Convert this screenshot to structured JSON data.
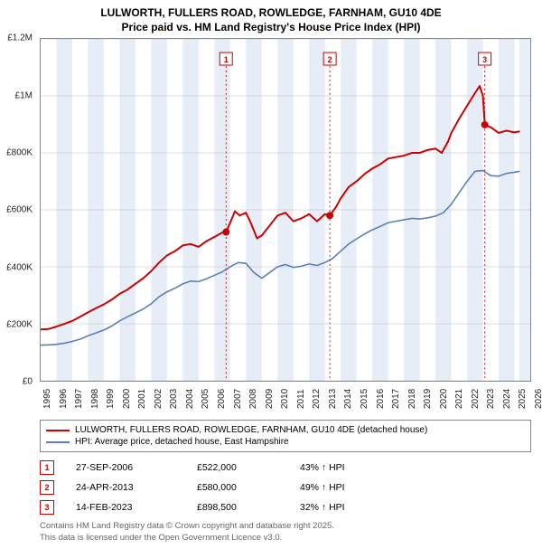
{
  "title_line1": "LULWORTH, FULLERS ROAD, ROWLEDGE, FARNHAM, GU10 4DE",
  "title_line2": "Price paid vs. HM Land Registry's House Price Index (HPI)",
  "chart": {
    "type": "line",
    "background_color": "#ffffff",
    "plot_border_color": "#888888",
    "band_color": "#e7edf7",
    "future_band_color": "#e7edf7",
    "grid_line_color": "#bbbbbb",
    "ylim": [
      0,
      1200000
    ],
    "ytick_step": 200000,
    "ytick_labels": [
      "£0",
      "£200K",
      "£400K",
      "£600K",
      "£800K",
      "£1M",
      "£1.2M"
    ],
    "xlim": [
      1995,
      2026
    ],
    "xticks": [
      1995,
      1996,
      1997,
      1998,
      1999,
      2000,
      2001,
      2002,
      2003,
      2004,
      2005,
      2006,
      2007,
      2008,
      2009,
      2010,
      2011,
      2012,
      2013,
      2014,
      2015,
      2016,
      2017,
      2018,
      2019,
      2020,
      2021,
      2022,
      2023,
      2024,
      2025,
      2026
    ],
    "alt_bands_start": 1995,
    "future_start": 2025.3,
    "series": [
      {
        "name": "property",
        "label": "LULWORTH, FULLERS ROAD, ROWLEDGE, FARNHAM, GU10 4DE (detached house)",
        "color": "#cc0000",
        "width": 2,
        "points": [
          [
            1995.0,
            180000
          ],
          [
            1995.5,
            182000
          ],
          [
            1996.0,
            190000
          ],
          [
            1996.5,
            200000
          ],
          [
            1997.0,
            210000
          ],
          [
            1997.5,
            225000
          ],
          [
            1998.0,
            240000
          ],
          [
            1998.5,
            255000
          ],
          [
            1999.0,
            268000
          ],
          [
            1999.5,
            285000
          ],
          [
            2000.0,
            305000
          ],
          [
            2000.5,
            320000
          ],
          [
            2001.0,
            340000
          ],
          [
            2001.5,
            360000
          ],
          [
            2002.0,
            385000
          ],
          [
            2002.5,
            415000
          ],
          [
            2003.0,
            440000
          ],
          [
            2003.5,
            455000
          ],
          [
            2004.0,
            475000
          ],
          [
            2004.5,
            480000
          ],
          [
            2005.0,
            470000
          ],
          [
            2005.5,
            490000
          ],
          [
            2006.0,
            505000
          ],
          [
            2006.5,
            520000
          ],
          [
            2006.74,
            522000
          ],
          [
            2007.0,
            555000
          ],
          [
            2007.3,
            595000
          ],
          [
            2007.6,
            580000
          ],
          [
            2008.0,
            590000
          ],
          [
            2008.3,
            555000
          ],
          [
            2008.7,
            500000
          ],
          [
            2009.0,
            510000
          ],
          [
            2009.5,
            545000
          ],
          [
            2010.0,
            580000
          ],
          [
            2010.5,
            590000
          ],
          [
            2011.0,
            560000
          ],
          [
            2011.5,
            570000
          ],
          [
            2012.0,
            585000
          ],
          [
            2012.5,
            560000
          ],
          [
            2013.0,
            585000
          ],
          [
            2013.31,
            580000
          ],
          [
            2013.7,
            610000
          ],
          [
            2014.0,
            640000
          ],
          [
            2014.5,
            680000
          ],
          [
            2015.0,
            700000
          ],
          [
            2015.5,
            725000
          ],
          [
            2016.0,
            745000
          ],
          [
            2016.5,
            760000
          ],
          [
            2017.0,
            780000
          ],
          [
            2017.5,
            785000
          ],
          [
            2018.0,
            790000
          ],
          [
            2018.5,
            800000
          ],
          [
            2019.0,
            800000
          ],
          [
            2019.5,
            810000
          ],
          [
            2020.0,
            815000
          ],
          [
            2020.4,
            800000
          ],
          [
            2020.8,
            840000
          ],
          [
            2021.0,
            870000
          ],
          [
            2021.5,
            920000
          ],
          [
            2022.0,
            965000
          ],
          [
            2022.5,
            1010000
          ],
          [
            2022.8,
            1035000
          ],
          [
            2023.0,
            1000000
          ],
          [
            2023.12,
            898500
          ],
          [
            2023.5,
            890000
          ],
          [
            2024.0,
            870000
          ],
          [
            2024.5,
            878000
          ],
          [
            2025.0,
            872000
          ],
          [
            2025.3,
            875000
          ]
        ]
      },
      {
        "name": "hpi",
        "label": "HPI: Average price, detached house, East Hampshire",
        "color": "#5b7fb5",
        "width": 1.6,
        "points": [
          [
            1995.0,
            125000
          ],
          [
            1995.5,
            126000
          ],
          [
            1996.0,
            128000
          ],
          [
            1996.5,
            132000
          ],
          [
            1997.0,
            138000
          ],
          [
            1997.5,
            146000
          ],
          [
            1998.0,
            158000
          ],
          [
            1998.5,
            168000
          ],
          [
            1999.0,
            178000
          ],
          [
            1999.5,
            192000
          ],
          [
            2000.0,
            210000
          ],
          [
            2000.5,
            225000
          ],
          [
            2001.0,
            238000
          ],
          [
            2001.5,
            252000
          ],
          [
            2002.0,
            270000
          ],
          [
            2002.5,
            295000
          ],
          [
            2003.0,
            312000
          ],
          [
            2003.5,
            325000
          ],
          [
            2004.0,
            340000
          ],
          [
            2004.5,
            350000
          ],
          [
            2005.0,
            348000
          ],
          [
            2005.5,
            358000
          ],
          [
            2006.0,
            370000
          ],
          [
            2006.5,
            382000
          ],
          [
            2007.0,
            400000
          ],
          [
            2007.5,
            415000
          ],
          [
            2008.0,
            412000
          ],
          [
            2008.5,
            380000
          ],
          [
            2009.0,
            360000
          ],
          [
            2009.5,
            380000
          ],
          [
            2010.0,
            400000
          ],
          [
            2010.5,
            408000
          ],
          [
            2011.0,
            398000
          ],
          [
            2011.5,
            402000
          ],
          [
            2012.0,
            410000
          ],
          [
            2012.5,
            405000
          ],
          [
            2013.0,
            415000
          ],
          [
            2013.5,
            430000
          ],
          [
            2014.0,
            455000
          ],
          [
            2014.5,
            480000
          ],
          [
            2015.0,
            498000
          ],
          [
            2015.5,
            515000
          ],
          [
            2016.0,
            530000
          ],
          [
            2016.5,
            542000
          ],
          [
            2017.0,
            555000
          ],
          [
            2017.5,
            560000
          ],
          [
            2018.0,
            565000
          ],
          [
            2018.5,
            570000
          ],
          [
            2019.0,
            568000
          ],
          [
            2019.5,
            572000
          ],
          [
            2020.0,
            578000
          ],
          [
            2020.5,
            590000
          ],
          [
            2021.0,
            620000
          ],
          [
            2021.5,
            660000
          ],
          [
            2022.0,
            700000
          ],
          [
            2022.5,
            735000
          ],
          [
            2023.0,
            738000
          ],
          [
            2023.5,
            720000
          ],
          [
            2024.0,
            718000
          ],
          [
            2024.5,
            728000
          ],
          [
            2025.0,
            732000
          ],
          [
            2025.3,
            735000
          ]
        ]
      }
    ],
    "markers": [
      {
        "id": "1",
        "x": 2006.74,
        "y": 522000,
        "vline_to": 0,
        "label_y": 1130000
      },
      {
        "id": "2",
        "x": 2013.31,
        "y": 580000,
        "vline_to": 0,
        "label_y": 1130000
      },
      {
        "id": "3",
        "x": 2023.12,
        "y": 898500,
        "vline_to": 0,
        "label_y": 1130000
      }
    ],
    "marker_line_color": "#cc0000",
    "marker_dot_color": "#cc0000",
    "marker_box_border": "#cc0000",
    "marker_box_text": "#cc0000"
  },
  "legend": {
    "items": [
      {
        "color": "#cc0000",
        "label": "LULWORTH, FULLERS ROAD, ROWLEDGE, FARNHAM, GU10 4DE (detached house)"
      },
      {
        "color": "#5b7fb5",
        "label": "HPI: Average price, detached house, East Hampshire"
      }
    ]
  },
  "marker_rows": [
    {
      "id": "1",
      "date": "27-SEP-2006",
      "price": "£522,000",
      "delta": "43% ↑ HPI"
    },
    {
      "id": "2",
      "date": "24-APR-2013",
      "price": "£580,000",
      "delta": "49% ↑ HPI"
    },
    {
      "id": "3",
      "date": "14-FEB-2023",
      "price": "£898,500",
      "delta": "32% ↑ HPI"
    }
  ],
  "credit_line1": "Contains HM Land Registry data © Crown copyright and database right 2025.",
  "credit_line2": "This data is licensed under the Open Government Licence v3.0."
}
